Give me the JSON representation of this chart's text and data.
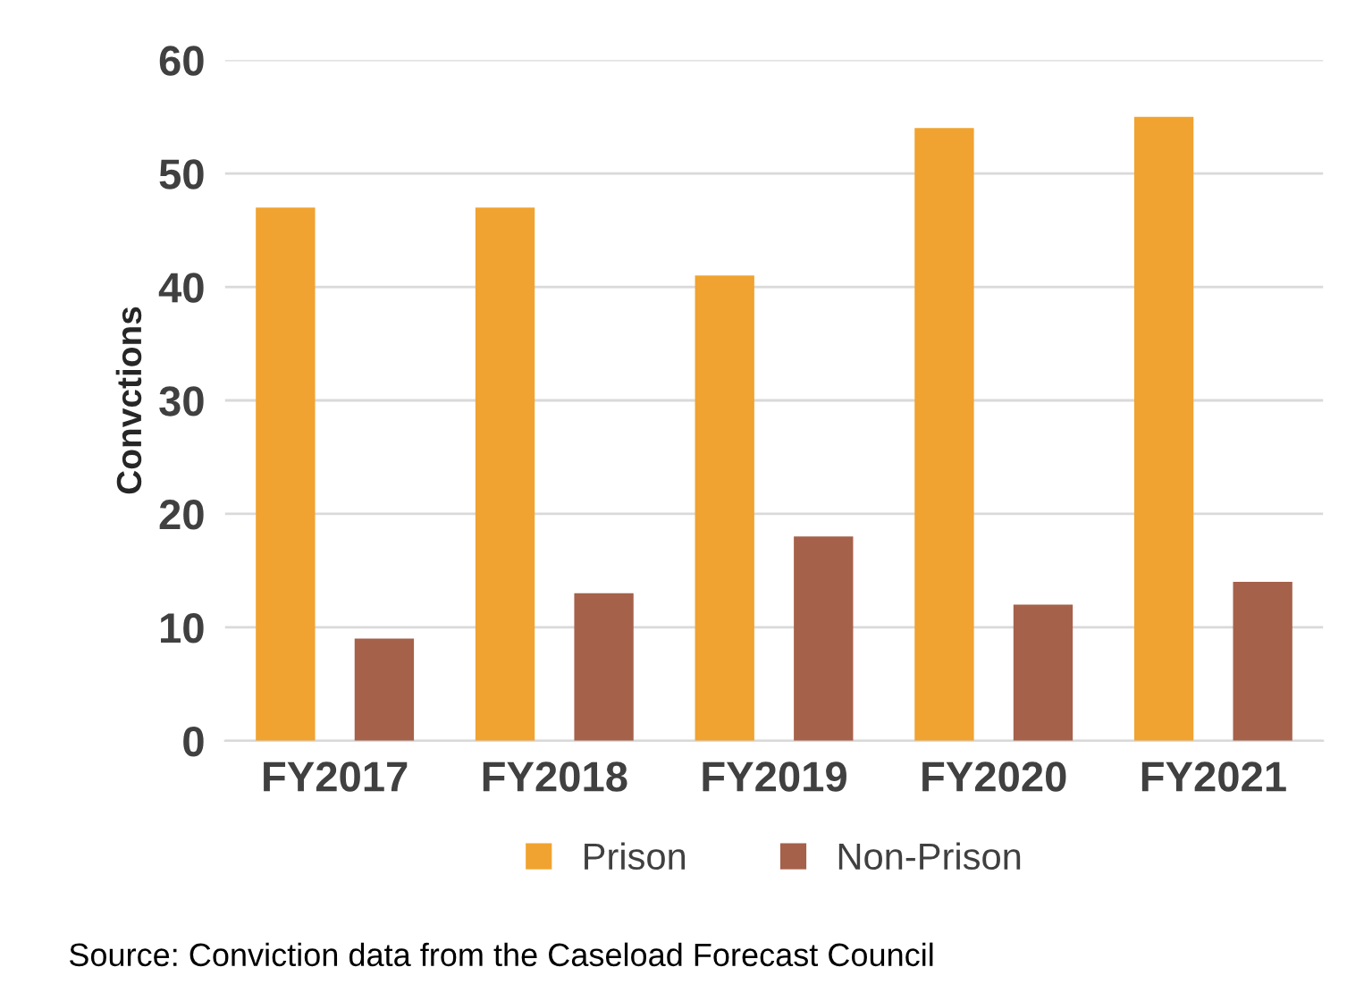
{
  "chart_data": {
    "type": "bar",
    "ylabel": "Convctions",
    "categories": [
      "FY2017",
      "FY2018",
      "FY2019",
      "FY2020",
      "FY2021"
    ],
    "series": [
      {
        "name": "Prison",
        "color": "#f0a330",
        "values": [
          47,
          47,
          41,
          54,
          55
        ]
      },
      {
        "name": "Non-Prison",
        "color": "#a5614a",
        "values": [
          9,
          13,
          18,
          12,
          14
        ]
      }
    ],
    "ylim": [
      0,
      60
    ],
    "yticks": [
      0,
      10,
      20,
      30,
      40,
      50,
      60
    ],
    "grid": "y",
    "legend": "bottom",
    "annotations": [
      "Source: Conviction data from the Caseload Forecast Council"
    ]
  }
}
